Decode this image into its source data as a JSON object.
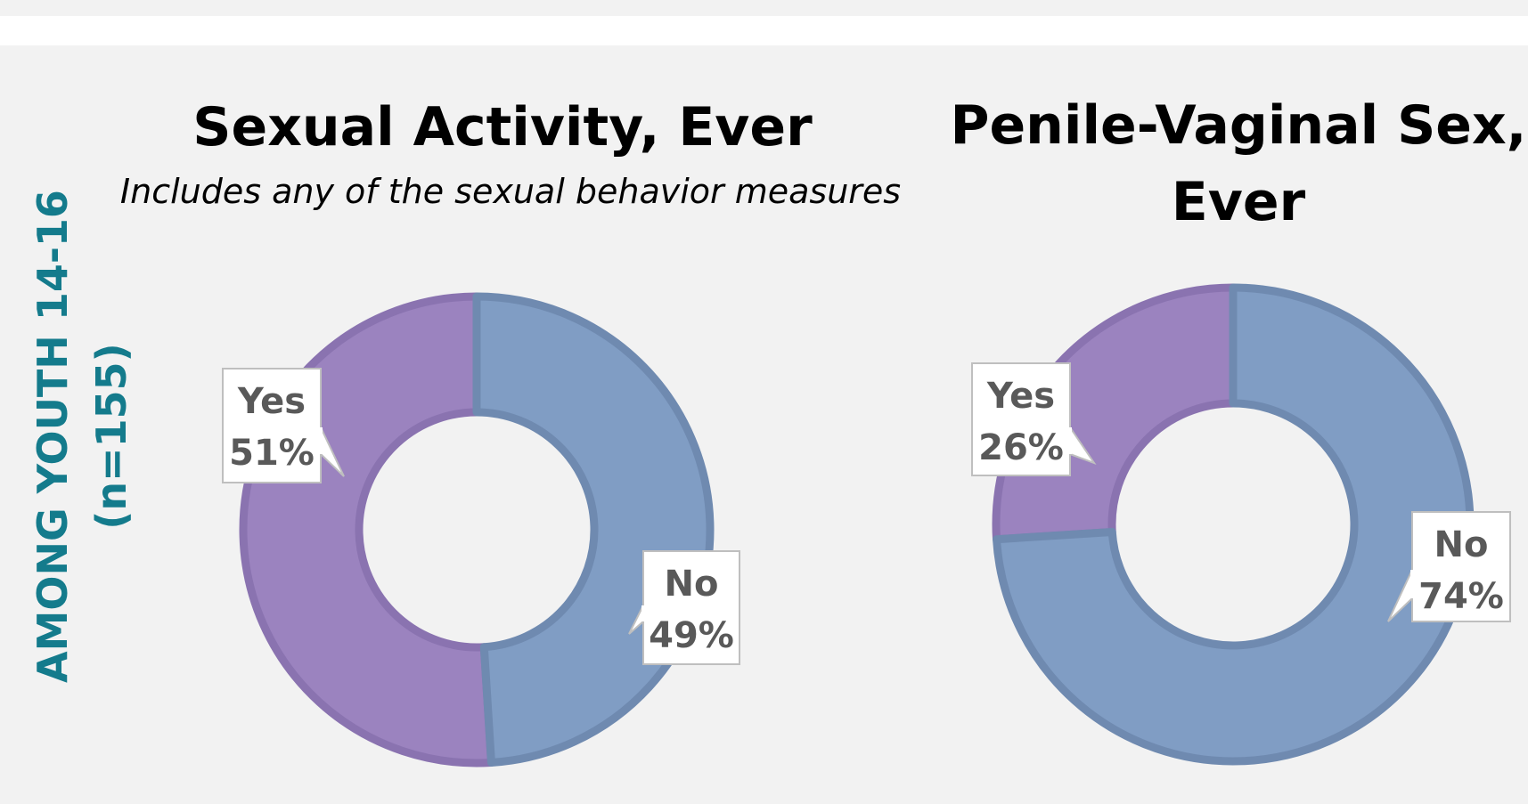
{
  "side_label": {
    "line1": "AMONG YOUTH 14-16",
    "line2": "(n=155)",
    "color": "#147b8c"
  },
  "colors": {
    "yes": "#9b83bf",
    "yes_border": "#8a73b0",
    "no": "#809dc4",
    "no_border": "#6f8ab0",
    "background": "#f2f2f2",
    "label_text": "#595959"
  },
  "chart_data": [
    {
      "type": "pie",
      "variant": "donut",
      "title": "Sexual Activity, Ever",
      "subtitle": "Includes any of the sexual behavior measures",
      "categories": [
        "Yes",
        "No"
      ],
      "values": [
        51,
        49
      ],
      "labels": [
        "51%",
        "49%"
      ]
    },
    {
      "type": "pie",
      "variant": "donut",
      "title": "Penile-Vaginal Sex, Ever",
      "subtitle": "",
      "categories": [
        "Yes",
        "No"
      ],
      "values": [
        26,
        74
      ],
      "labels": [
        "26%",
        "74%"
      ]
    }
  ]
}
